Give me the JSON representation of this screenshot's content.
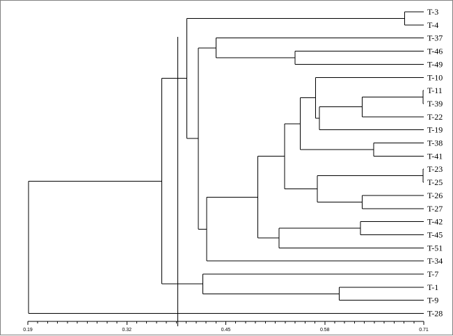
{
  "chart_data": {
    "type": "dendrogram",
    "title": "",
    "xlabel": "",
    "ylabel": "",
    "xlim": [
      0.19,
      0.71
    ],
    "grid": false,
    "legend": "none",
    "colors": {
      "line": "#000000",
      "background": "#ffffff",
      "border": "#808080"
    },
    "x_ticks": [
      "0.19",
      "0.32",
      "0.45",
      "0.58",
      "0.71"
    ],
    "tick_values": [
      0.19,
      0.32,
      0.45,
      0.58,
      0.71
    ],
    "reference_line_x": 0.387,
    "leaves": [
      "T-3",
      "T-4",
      "T-37",
      "T-46",
      "T-49",
      "T-10",
      "T-11",
      "T-39",
      "T-22",
      "T-19",
      "T-38",
      "T-41",
      "T-23",
      "T-25",
      "T-26",
      "T-27",
      "T-42",
      "T-45",
      "T-51",
      "T-34",
      "T-7",
      "T-1",
      "T-9",
      "T-28"
    ],
    "merges": [
      {
        "id": "A",
        "children": [
          "T-3",
          "T-4"
        ],
        "similarity": 0.685
      },
      {
        "id": "B",
        "children": [
          "T-46",
          "T-49"
        ],
        "similarity": 0.541
      },
      {
        "id": "C",
        "children": [
          "T-37",
          "B"
        ],
        "similarity": 0.437
      },
      {
        "id": "D",
        "children": [
          "T-11",
          "T-39"
        ],
        "similarity": 0.709
      },
      {
        "id": "E",
        "children": [
          "D",
          "T-22"
        ],
        "similarity": 0.629
      },
      {
        "id": "F",
        "children": [
          "E",
          "T-19"
        ],
        "similarity": 0.573
      },
      {
        "id": "G",
        "children": [
          "T-10",
          "F"
        ],
        "similarity": 0.568
      },
      {
        "id": "H",
        "children": [
          "T-38",
          "T-41"
        ],
        "similarity": 0.644
      },
      {
        "id": "I",
        "children": [
          "G",
          "H"
        ],
        "similarity": 0.548
      },
      {
        "id": "J",
        "children": [
          "T-23",
          "T-25"
        ],
        "similarity": 0.709
      },
      {
        "id": "K",
        "children": [
          "T-26",
          "T-27"
        ],
        "similarity": 0.629
      },
      {
        "id": "L",
        "children": [
          "J",
          "K"
        ],
        "similarity": 0.57
      },
      {
        "id": "M",
        "children": [
          "I",
          "L"
        ],
        "similarity": 0.527
      },
      {
        "id": "N",
        "children": [
          "T-42",
          "T-45"
        ],
        "similarity": 0.627
      },
      {
        "id": "O",
        "children": [
          "N",
          "T-51"
        ],
        "similarity": 0.52
      },
      {
        "id": "P",
        "children": [
          "M",
          "O"
        ],
        "similarity": 0.492
      },
      {
        "id": "Q",
        "children": [
          "P",
          "T-34"
        ],
        "similarity": 0.425
      },
      {
        "id": "R",
        "children": [
          "C",
          "Q"
        ],
        "similarity": 0.414
      },
      {
        "id": "S",
        "children": [
          "A",
          "R"
        ],
        "similarity": 0.399
      },
      {
        "id": "T",
        "children": [
          "T-1",
          "T-9"
        ],
        "similarity": 0.599
      },
      {
        "id": "U",
        "children": [
          "T-7",
          "T"
        ],
        "similarity": 0.42
      },
      {
        "id": "V",
        "children": [
          "S",
          "U"
        ],
        "similarity": 0.366
      },
      {
        "id": "W",
        "children": [
          "V",
          "T-28"
        ],
        "similarity": 0.191
      }
    ]
  }
}
